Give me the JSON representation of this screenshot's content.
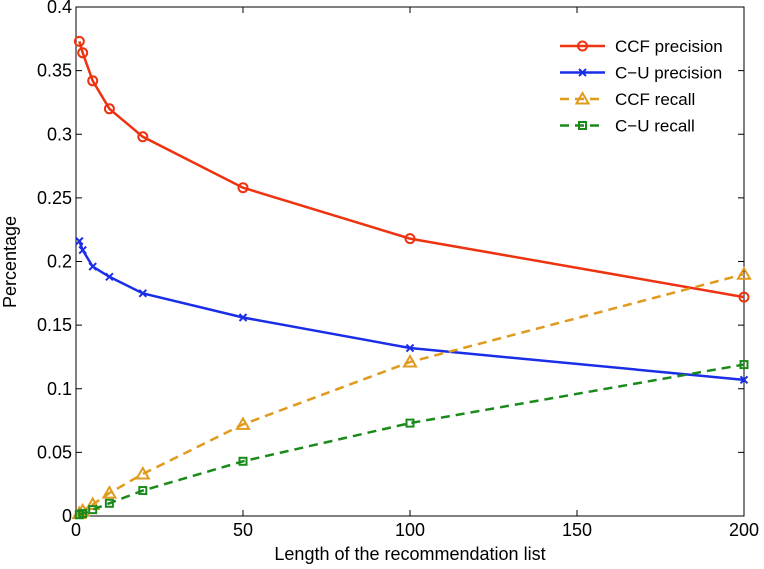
{
  "chart_data": {
    "type": "line",
    "title": "",
    "xlabel": "Length of the recommendation list",
    "ylabel": "Percentage",
    "xlim": [
      0,
      200
    ],
    "ylim": [
      0,
      0.4
    ],
    "xticks": [
      "0",
      "50",
      "100",
      "150",
      "200"
    ],
    "yticks": [
      "0",
      "0.05",
      "0.1",
      "0.15",
      "0.2",
      "0.25",
      "0.3",
      "0.35",
      "0.4"
    ],
    "grid": false,
    "legend_position": "top-right",
    "x": [
      1,
      2,
      5,
      10,
      20,
      50,
      100,
      200
    ],
    "series": [
      {
        "name": "CCF precision",
        "color": "#ee3311",
        "marker": "circle",
        "dashed": false,
        "values": [
          0.373,
          0.364,
          0.342,
          0.32,
          0.298,
          0.258,
          0.218,
          0.172
        ]
      },
      {
        "name": "C−U precision",
        "color": "#1a2ee8",
        "marker": "x",
        "dashed": false,
        "values": [
          0.216,
          0.209,
          0.196,
          0.188,
          0.175,
          0.156,
          0.132,
          0.107
        ]
      },
      {
        "name": "CCF recall",
        "color": "#e09a1c",
        "marker": "triangle",
        "dashed": true,
        "values": [
          0.002,
          0.004,
          0.009,
          0.018,
          0.033,
          0.072,
          0.121,
          0.19
        ]
      },
      {
        "name": "C−U recall",
        "color": "#1a8a1a",
        "marker": "square",
        "dashed": true,
        "values": [
          0.001,
          0.002,
          0.005,
          0.01,
          0.02,
          0.043,
          0.073,
          0.119
        ]
      }
    ]
  }
}
